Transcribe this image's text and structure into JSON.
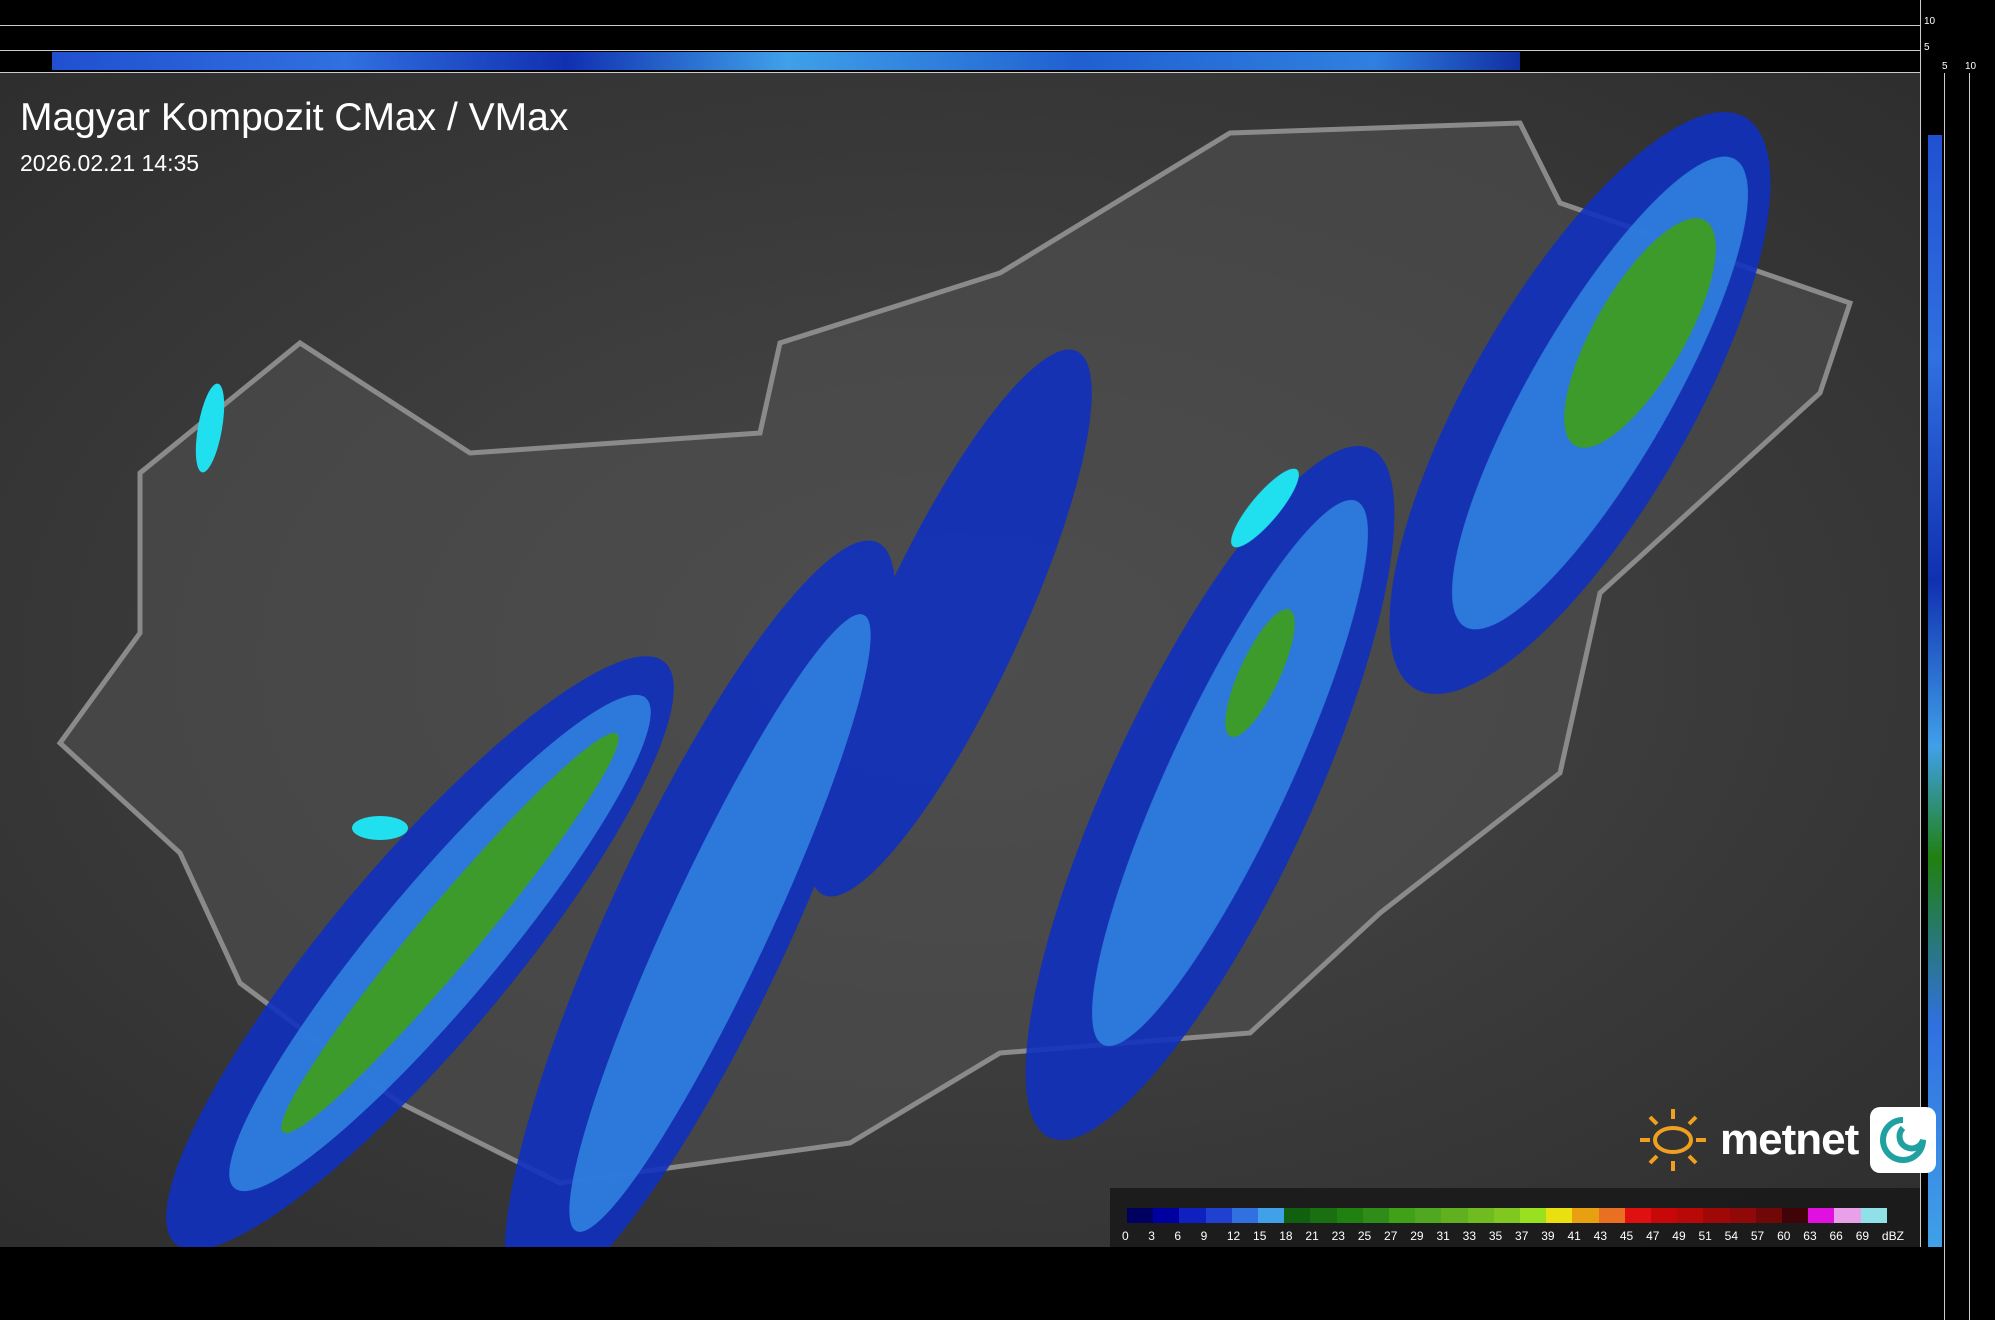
{
  "title": "Magyar Kompozit CMax / VMax",
  "timestamp": "2026.02.21 14:35",
  "logo": {
    "text": "metnet",
    "icon": "metnet-swirl-logo"
  },
  "profile_axes": {
    "top_ticks": [
      "10",
      "5"
    ],
    "right_ticks": [
      "5",
      "10"
    ]
  },
  "legend": {
    "unit": "dBZ",
    "labels": [
      "0",
      "3",
      "6",
      "9",
      "12",
      "15",
      "18",
      "21",
      "23",
      "25",
      "27",
      "29",
      "31",
      "33",
      "35",
      "37",
      "39",
      "41",
      "43",
      "45",
      "47",
      "49",
      "51",
      "54",
      "57",
      "60",
      "63",
      "66",
      "69"
    ],
    "colors": [
      "#000060",
      "#0000a0",
      "#1020c0",
      "#2040d0",
      "#3070e0",
      "#40a0e8",
      "#106010",
      "#187010",
      "#208010",
      "#308c18",
      "#40a018",
      "#50a820",
      "#60b020",
      "#70bc20",
      "#80c820",
      "#98e020",
      "#e8e010",
      "#e8a010",
      "#e87020",
      "#e01010",
      "#c80808",
      "#b80808",
      "#a00808",
      "#900808",
      "#700808",
      "#400408",
      "#e010e0",
      "#e8a0e8",
      "#90e0e8"
    ]
  },
  "colors": {
    "border": "#8a8a8a",
    "rivers": "#40b0c8",
    "lakes": "#20e0f0"
  }
}
